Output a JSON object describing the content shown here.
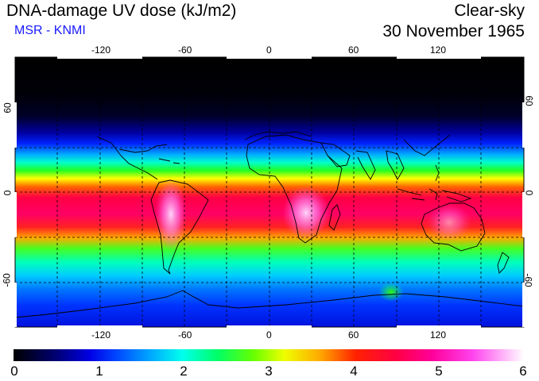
{
  "header": {
    "title": "DNA-damage UV dose (kJ/m2)",
    "subtitle": "MSR - KNMI",
    "sky": "Clear-sky",
    "date": "30 November 1965"
  },
  "map": {
    "longitude_ticks": [
      "-120",
      "-60",
      "0",
      "60",
      "120"
    ],
    "latitude_ticks": [
      "60",
      "0",
      "-60"
    ]
  },
  "colorbar": {
    "labels": [
      "0",
      "1",
      "2",
      "3",
      "4",
      "5",
      "6"
    ]
  },
  "colors": {
    "subtitle": "#1a1aff"
  }
}
